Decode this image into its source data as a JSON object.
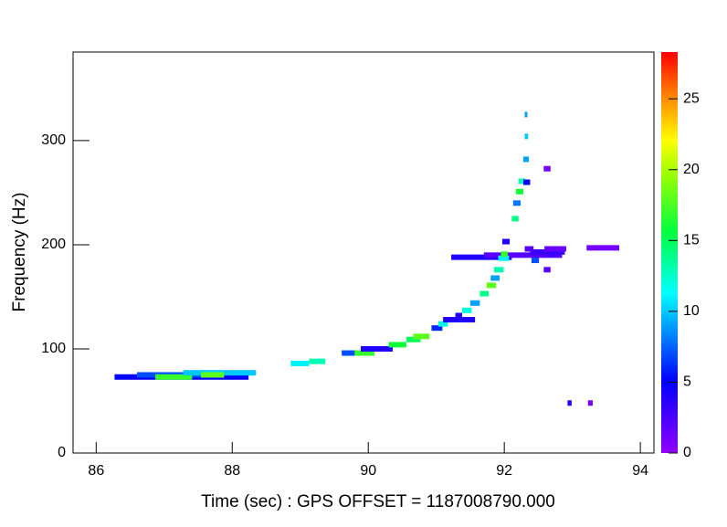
{
  "chart_data": {
    "type": "tiles",
    "xlabel": "Time (sec) : GPS OFFSET = 1187008790.000",
    "ylabel": "Frequency (Hz)",
    "xlim": [
      85.66,
      94.2
    ],
    "xticks": [
      86,
      88,
      90,
      92,
      94
    ],
    "ylim": [
      0,
      385
    ],
    "yticks": [
      0,
      100,
      200,
      300
    ],
    "zlim": [
      0,
      28.3
    ],
    "zticks": [
      0,
      5,
      10,
      15,
      20,
      25
    ],
    "colorscale": [
      [
        0,
        "#9000ff"
      ],
      [
        0.18,
        "#0000ff"
      ],
      [
        0.4,
        "#00ffff"
      ],
      [
        0.55,
        "#00ff40"
      ],
      [
        0.7,
        "#a0ff00"
      ],
      [
        0.78,
        "#ffff00"
      ],
      [
        0.88,
        "#ff9000"
      ],
      [
        1,
        "#ff0000"
      ]
    ],
    "tiles": {
      "x0": [
        86.27,
        86.6,
        86.87,
        87.28,
        87.54,
        88.86,
        89.13,
        89.61,
        89.8,
        89.89,
        90.3,
        90.56,
        90.66,
        90.93,
        91.03,
        91.1,
        91.28,
        91.38,
        91.5,
        91.64,
        91.74,
        91.8,
        91.85,
        91.22,
        91.7,
        92.38,
        91.91,
        91.95,
        91.97,
        92.11,
        92.13,
        92.17,
        92.21,
        92.28,
        92.3,
        92.3,
        92.28,
        92.4,
        92.58,
        92.3,
        92.59,
        92.58,
        92.64,
        93.21,
        92.93,
        93.23
      ],
      "x1": [
        88.24,
        87.81,
        87.41,
        88.35,
        87.88,
        89.13,
        89.37,
        89.96,
        90.09,
        90.36,
        90.56,
        90.77,
        90.9,
        91.09,
        91.17,
        91.57,
        91.38,
        91.52,
        91.64,
        91.77,
        91.88,
        91.93,
        91.99,
        92.11,
        92.85,
        92.89,
        92.07,
        92.05,
        92.08,
        92.21,
        92.24,
        92.28,
        92.31,
        92.36,
        92.35,
        92.34,
        92.38,
        92.51,
        92.68,
        92.43,
        92.91,
        92.68,
        92.78,
        93.69,
        92.99,
        93.3
      ],
      "y": [
        73,
        75,
        73,
        77,
        75,
        86,
        88,
        96,
        96,
        100,
        104,
        109,
        112,
        120,
        124,
        128,
        132,
        137,
        144,
        153,
        161,
        168,
        176,
        188,
        190,
        193,
        187,
        191,
        203,
        225,
        240,
        251,
        261,
        282,
        304,
        325,
        260,
        185,
        273,
        196,
        196,
        176,
        191,
        197,
        48,
        48
      ],
      "z": [
        5,
        7,
        17,
        10,
        18,
        11,
        13,
        7,
        17,
        4,
        16,
        15,
        18,
        6,
        12,
        4,
        4,
        12,
        9,
        14,
        18,
        9,
        13,
        4,
        2,
        3,
        11,
        17,
        4,
        14,
        8,
        16,
        13,
        9,
        10,
        9,
        5,
        7,
        1,
        2,
        1.5,
        2,
        3,
        1,
        4,
        1
      ]
    }
  }
}
